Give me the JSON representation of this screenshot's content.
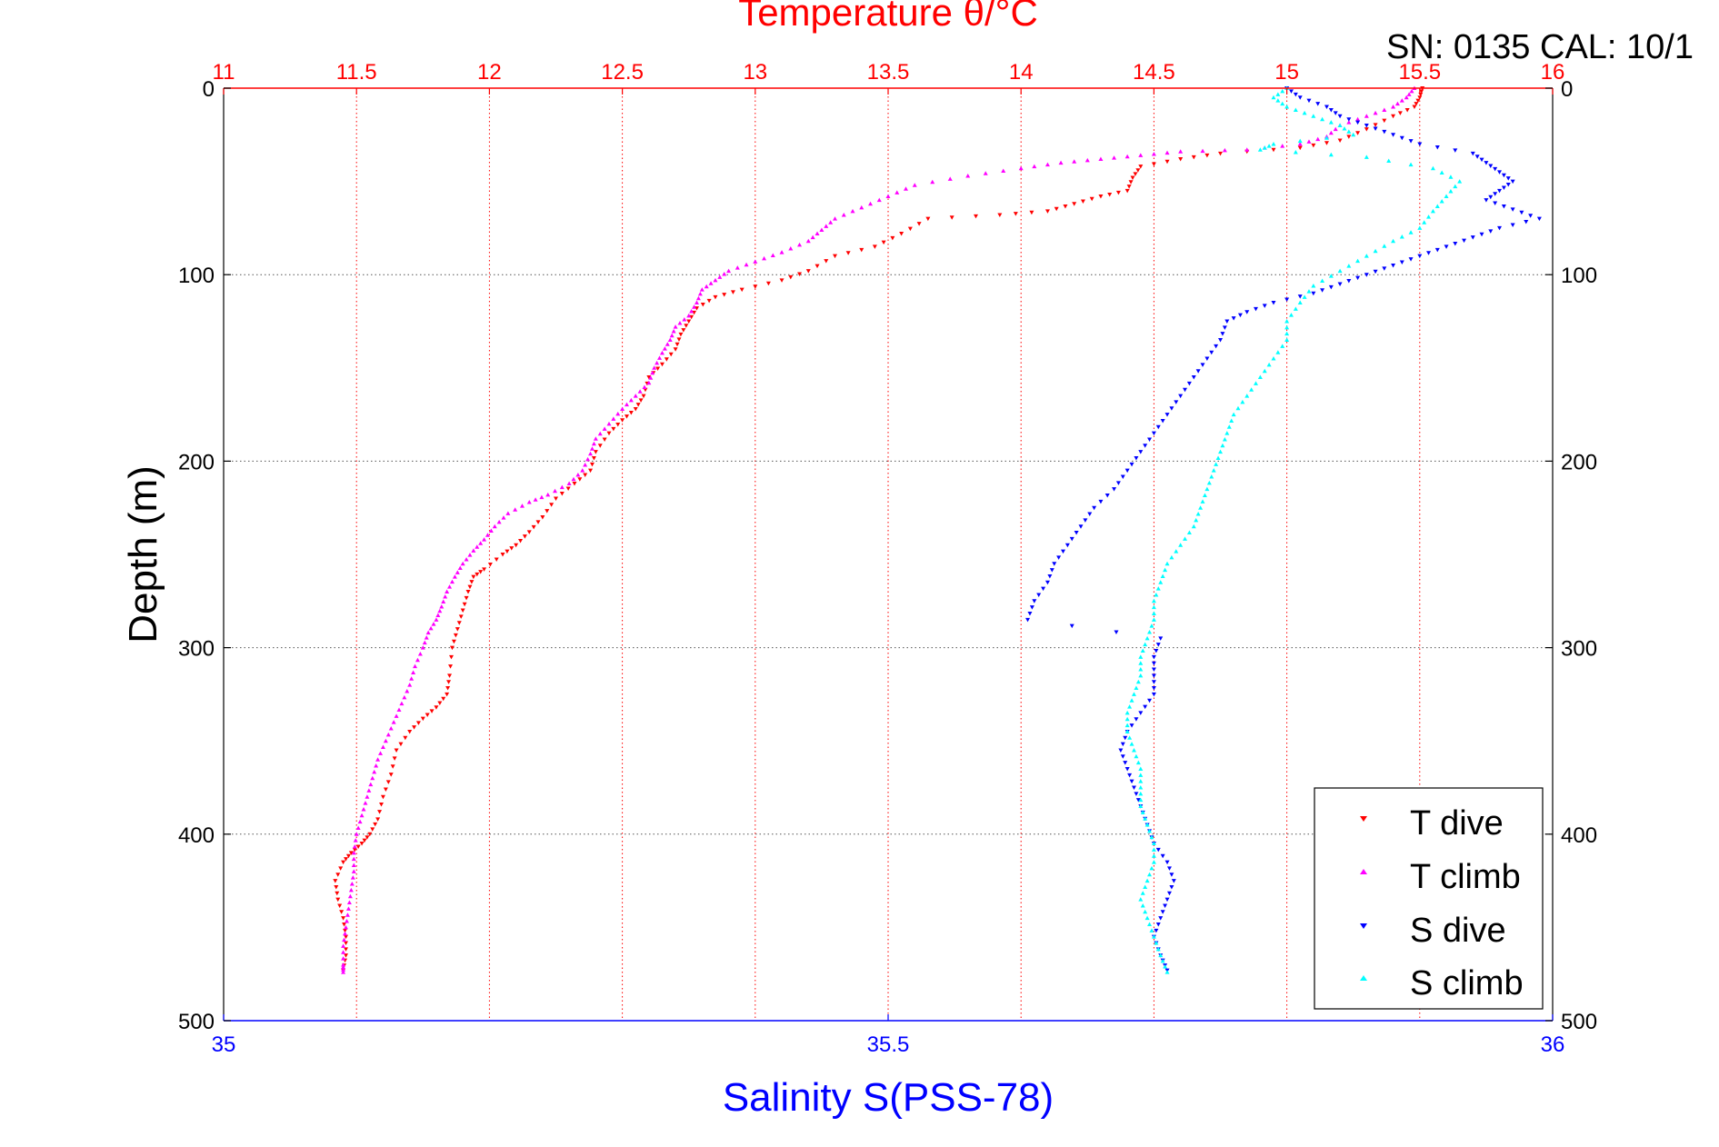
{
  "header": {
    "title": "Temperature θ/°C",
    "serial": "SN: 0135  CAL: 10/1"
  },
  "colors": {
    "t_dive": "#ff0000",
    "t_climb": "#ff00ff",
    "s_dive": "#0000ff",
    "s_climb": "#00ffff",
    "temp_axis": "#ff0000",
    "sal_axis": "#0000ff"
  },
  "chart_data": {
    "type": "scatter",
    "title": "Temperature θ/°C",
    "xlabel": "Salinity S(PSS-78)",
    "ylabel": "Depth (m)",
    "temperature_axis": {
      "label": "Temperature θ/°C",
      "lim": [
        11,
        16
      ],
      "ticks": [
        "11",
        "11.5",
        "12",
        "12.5",
        "13",
        "13.5",
        "14",
        "14.5",
        "15",
        "15.5",
        "16"
      ]
    },
    "salinity_axis": {
      "label": "Salinity S(PSS-78)",
      "lim": [
        35,
        36
      ],
      "ticks": [
        "35",
        "35.5",
        "36"
      ]
    },
    "depth_axis": {
      "label": "Depth (m)",
      "lim": [
        0,
        500
      ],
      "reversed": true,
      "ticks": [
        "0",
        "100",
        "200",
        "300",
        "400",
        "500"
      ]
    },
    "grid": true,
    "legend": {
      "placement": "bottom-right",
      "entries": [
        "T dive",
        "T climb",
        "S dive",
        "S climb"
      ]
    },
    "series": [
      {
        "name": "T dive",
        "axis": "temperature",
        "marker": "triangle-down",
        "points": [
          [
            15.51,
            0
          ],
          [
            15.5,
            5
          ],
          [
            15.48,
            10
          ],
          [
            15.4,
            15
          ],
          [
            15.3,
            22
          ],
          [
            15.2,
            28
          ],
          [
            15.05,
            32
          ],
          [
            14.75,
            35
          ],
          [
            14.6,
            38
          ],
          [
            14.45,
            42
          ],
          [
            14.42,
            48
          ],
          [
            14.4,
            55
          ],
          [
            14.3,
            58
          ],
          [
            14.2,
            62
          ],
          [
            14.1,
            66
          ],
          [
            13.92,
            68
          ],
          [
            13.65,
            70
          ],
          [
            13.55,
            78
          ],
          [
            13.45,
            85
          ],
          [
            13.3,
            90
          ],
          [
            13.2,
            98
          ],
          [
            13.1,
            103
          ],
          [
            12.95,
            108
          ],
          [
            12.85,
            112
          ],
          [
            12.78,
            118
          ],
          [
            12.75,
            125
          ],
          [
            12.72,
            132
          ],
          [
            12.7,
            140
          ],
          [
            12.65,
            148
          ],
          [
            12.6,
            155
          ],
          [
            12.58,
            165
          ],
          [
            12.55,
            172
          ],
          [
            12.5,
            178
          ],
          [
            12.45,
            185
          ],
          [
            12.4,
            195
          ],
          [
            12.38,
            205
          ],
          [
            12.32,
            212
          ],
          [
            12.25,
            220
          ],
          [
            12.2,
            230
          ],
          [
            12.15,
            238
          ],
          [
            12.1,
            245
          ],
          [
            12.05,
            250
          ],
          [
            11.98,
            258
          ],
          [
            11.94,
            262
          ],
          [
            11.92,
            270
          ],
          [
            11.9,
            280
          ],
          [
            11.88,
            290
          ],
          [
            11.86,
            300
          ],
          [
            11.85,
            315
          ],
          [
            11.84,
            325
          ],
          [
            11.8,
            332
          ],
          [
            11.75,
            338
          ],
          [
            11.7,
            345
          ],
          [
            11.65,
            355
          ],
          [
            11.63,
            368
          ],
          [
            11.6,
            380
          ],
          [
            11.58,
            392
          ],
          [
            11.55,
            400
          ],
          [
            11.52,
            405
          ],
          [
            11.48,
            410
          ],
          [
            11.45,
            415
          ],
          [
            11.42,
            425
          ],
          [
            11.43,
            435
          ],
          [
            11.45,
            445
          ],
          [
            11.46,
            455
          ],
          [
            11.46,
            465
          ],
          [
            11.45,
            473
          ]
        ]
      },
      {
        "name": "T climb",
        "axis": "temperature",
        "marker": "triangle-up",
        "points": [
          [
            15.48,
            0
          ],
          [
            15.45,
            5
          ],
          [
            15.4,
            10
          ],
          [
            15.3,
            15
          ],
          [
            15.2,
            20
          ],
          [
            15.15,
            26
          ],
          [
            15.05,
            30
          ],
          [
            14.85,
            33
          ],
          [
            14.6,
            34
          ],
          [
            14.45,
            36
          ],
          [
            14.3,
            38
          ],
          [
            14.15,
            40
          ],
          [
            14.0,
            43
          ],
          [
            13.8,
            47
          ],
          [
            13.6,
            52
          ],
          [
            13.5,
            58
          ],
          [
            13.4,
            64
          ],
          [
            13.3,
            70
          ],
          [
            13.25,
            76
          ],
          [
            13.2,
            82
          ],
          [
            13.1,
            88
          ],
          [
            13.0,
            93
          ],
          [
            12.9,
            98
          ],
          [
            12.85,
            103
          ],
          [
            12.8,
            108
          ],
          [
            12.78,
            115
          ],
          [
            12.75,
            122
          ],
          [
            12.7,
            128
          ],
          [
            12.68,
            135
          ],
          [
            12.65,
            142
          ],
          [
            12.62,
            150
          ],
          [
            12.6,
            158
          ],
          [
            12.55,
            165
          ],
          [
            12.5,
            172
          ],
          [
            12.45,
            180
          ],
          [
            12.4,
            188
          ],
          [
            12.38,
            196
          ],
          [
            12.35,
            205
          ],
          [
            12.3,
            212
          ],
          [
            12.22,
            218
          ],
          [
            12.15,
            222
          ],
          [
            12.07,
            228
          ],
          [
            12.02,
            235
          ],
          [
            11.98,
            242
          ],
          [
            11.94,
            248
          ],
          [
            11.9,
            255
          ],
          [
            11.87,
            262
          ],
          [
            11.84,
            270
          ],
          [
            11.82,
            278
          ],
          [
            11.8,
            285
          ],
          [
            11.77,
            292
          ],
          [
            11.75,
            300
          ],
          [
            11.72,
            310
          ],
          [
            11.7,
            320
          ],
          [
            11.67,
            330
          ],
          [
            11.64,
            340
          ],
          [
            11.61,
            350
          ],
          [
            11.58,
            360
          ],
          [
            11.56,
            370
          ],
          [
            11.54,
            380
          ],
          [
            11.52,
            390
          ],
          [
            11.5,
            400
          ],
          [
            11.49,
            410
          ],
          [
            11.49,
            420
          ],
          [
            11.48,
            430
          ],
          [
            11.47,
            440
          ],
          [
            11.46,
            450
          ],
          [
            11.45,
            460
          ],
          [
            11.45,
            470
          ],
          [
            11.45,
            474
          ]
        ]
      },
      {
        "name": "S dive",
        "axis": "salinity",
        "marker": "triangle-down",
        "points": [
          [
            35.8,
            0
          ],
          [
            35.81,
            5
          ],
          [
            35.83,
            10
          ],
          [
            35.84,
            15
          ],
          [
            35.86,
            20
          ],
          [
            35.88,
            25
          ],
          [
            35.9,
            30
          ],
          [
            35.94,
            35
          ],
          [
            35.95,
            40
          ],
          [
            35.96,
            45
          ],
          [
            35.97,
            50
          ],
          [
            35.96,
            55
          ],
          [
            35.95,
            60
          ],
          [
            35.97,
            65
          ],
          [
            35.99,
            70
          ],
          [
            35.96,
            75
          ],
          [
            35.94,
            80
          ],
          [
            35.92,
            85
          ],
          [
            35.9,
            90
          ],
          [
            35.88,
            95
          ],
          [
            35.86,
            100
          ],
          [
            35.84,
            105
          ],
          [
            35.82,
            110
          ],
          [
            35.79,
            115
          ],
          [
            35.77,
            120
          ],
          [
            35.755,
            125
          ],
          [
            35.75,
            135
          ],
          [
            35.74,
            145
          ],
          [
            35.73,
            155
          ],
          [
            35.72,
            165
          ],
          [
            35.71,
            175
          ],
          [
            35.7,
            185
          ],
          [
            35.69,
            195
          ],
          [
            35.68,
            205
          ],
          [
            35.67,
            215
          ],
          [
            35.655,
            225
          ],
          [
            35.645,
            235
          ],
          [
            35.635,
            245
          ],
          [
            35.625,
            255
          ],
          [
            35.62,
            265
          ],
          [
            35.61,
            275
          ],
          [
            35.605,
            285
          ],
          [
            35.705,
            295
          ],
          [
            35.7,
            305
          ],
          [
            35.7,
            315
          ],
          [
            35.7,
            325
          ],
          [
            35.69,
            335
          ],
          [
            35.68,
            345
          ],
          [
            35.675,
            355
          ],
          [
            35.68,
            365
          ],
          [
            35.685,
            375
          ],
          [
            35.69,
            385
          ],
          [
            35.695,
            395
          ],
          [
            35.7,
            405
          ],
          [
            35.71,
            415
          ],
          [
            35.715,
            425
          ],
          [
            35.71,
            435
          ],
          [
            35.705,
            445
          ],
          [
            35.7,
            455
          ],
          [
            35.705,
            465
          ],
          [
            35.71,
            473
          ]
        ]
      },
      {
        "name": "S climb",
        "axis": "salinity",
        "marker": "triangle-up",
        "points": [
          [
            35.8,
            0
          ],
          [
            35.79,
            5
          ],
          [
            35.8,
            10
          ],
          [
            35.82,
            15
          ],
          [
            35.84,
            20
          ],
          [
            35.85,
            25
          ],
          [
            35.79,
            30
          ],
          [
            35.78,
            33
          ],
          [
            35.86,
            37
          ],
          [
            35.91,
            43
          ],
          [
            35.93,
            50
          ],
          [
            35.92,
            58
          ],
          [
            35.91,
            66
          ],
          [
            35.9,
            75
          ],
          [
            35.88,
            82
          ],
          [
            35.86,
            90
          ],
          [
            35.84,
            98
          ],
          [
            35.82,
            106
          ],
          [
            35.81,
            115
          ],
          [
            35.8,
            125
          ],
          [
            35.8,
            135
          ],
          [
            35.79,
            145
          ],
          [
            35.78,
            155
          ],
          [
            35.77,
            165
          ],
          [
            35.76,
            175
          ],
          [
            35.755,
            185
          ],
          [
            35.75,
            195
          ],
          [
            35.745,
            205
          ],
          [
            35.74,
            215
          ],
          [
            35.735,
            225
          ],
          [
            35.73,
            235
          ],
          [
            35.72,
            245
          ],
          [
            35.71,
            255
          ],
          [
            35.705,
            265
          ],
          [
            35.7,
            275
          ],
          [
            35.7,
            285
          ],
          [
            35.695,
            295
          ],
          [
            35.69,
            305
          ],
          [
            35.69,
            315
          ],
          [
            35.685,
            325
          ],
          [
            35.68,
            335
          ],
          [
            35.68,
            345
          ],
          [
            35.685,
            355
          ],
          [
            35.69,
            365
          ],
          [
            35.69,
            375
          ],
          [
            35.69,
            385
          ],
          [
            35.695,
            395
          ],
          [
            35.7,
            405
          ],
          [
            35.7,
            415
          ],
          [
            35.695,
            425
          ],
          [
            35.69,
            435
          ],
          [
            35.695,
            445
          ],
          [
            35.7,
            455
          ],
          [
            35.705,
            465
          ],
          [
            35.71,
            474
          ]
        ]
      }
    ]
  }
}
